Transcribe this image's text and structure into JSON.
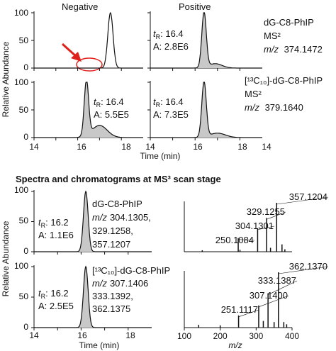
{
  "headers": {
    "negative": "Negative",
    "positive": "Positive"
  },
  "ylabel": "Relative Abundance",
  "ticks": {
    "y0": "0",
    "y50": "50",
    "y100": "100",
    "x14": "14",
    "x16": "16",
    "x18": "18"
  },
  "xlabel_time": "Time (min)",
  "xlabel_mz": "m/z",
  "section_title": "Spectra and chromatograms at MS³ scan stage",
  "colors": {
    "peak_fill": "#c8c8c8",
    "line": "#111111",
    "arrow": "#e0201b"
  },
  "top_labels": {
    "row1": {
      "compound": "dG-C8-PhIP",
      "ms": "MS²",
      "mz_prefix": "m/z",
      "mz": "374.1472"
    },
    "row2": {
      "compound": "[¹³C₁₀]-dG-C8-PhIP",
      "ms": "MS²",
      "mz_prefix": "m/z",
      "mz": "379.1640"
    }
  },
  "annotations": {
    "r1_pos": {
      "tr": "16.4",
      "a": "2.8E6"
    },
    "r2_neg": {
      "tr": "16.4",
      "a": "5.5E5"
    },
    "r2_pos": {
      "tr": "16.4",
      "a": "7.3E5"
    },
    "b1": {
      "tr": "16.2",
      "a": "1.1E6",
      "compound": "dG-C8-PhIP",
      "mz_prefix": "m/z",
      "mz1": "304.1305,",
      "mz2": "329.1258,",
      "mz3": "357.1207"
    },
    "b2": {
      "tr": "16.2",
      "a": "2.5E5",
      "compound": "[¹³C₁₀]-dG-C8-PhIP",
      "mz_prefix": "m/z",
      "mz1": "307.1406",
      "mz2": "333.1392,",
      "mz3": "362.1375"
    }
  },
  "chart_data": [
    {
      "type": "line",
      "panel": "negative dG-C8-PhIP MS²",
      "xlim": [
        14,
        19
      ],
      "ylim": [
        0,
        100
      ],
      "peaks": [
        {
          "rt": 17.5,
          "height": 100,
          "width": 0.12
        }
      ]
    },
    {
      "type": "area",
      "panel": "positive dG-C8-PhIP MS²",
      "xlim": [
        14,
        19
      ],
      "ylim": [
        0,
        100
      ],
      "peaks": [
        {
          "rt": 16.4,
          "height": 100,
          "width": 0.1
        },
        {
          "rt": 16.9,
          "height": 8,
          "width": 0.3
        }
      ]
    },
    {
      "type": "area",
      "panel": "negative [¹³C₁₀]-dG-C8-PhIP MS²",
      "xlim": [
        14,
        19
      ],
      "ylim": [
        0,
        100
      ],
      "peaks": [
        {
          "rt": 16.4,
          "height": 100,
          "width": 0.1
        },
        {
          "rt": 17.0,
          "height": 22,
          "width": 0.35
        }
      ]
    },
    {
      "type": "area",
      "panel": "positive [¹³C₁₀]-dG-C8-PhIP MS²",
      "xlim": [
        14,
        19
      ],
      "ylim": [
        0,
        100
      ],
      "peaks": [
        {
          "rt": 16.4,
          "height": 100,
          "width": 0.1
        },
        {
          "rt": 17.0,
          "height": 8,
          "width": 0.35
        }
      ]
    },
    {
      "type": "area",
      "panel": "dG-C8-PhIP MS³ chromatogram",
      "xlim": [
        14,
        19
      ],
      "ylim": [
        0,
        100
      ],
      "peaks": [
        {
          "rt": 16.2,
          "height": 100,
          "width": 0.1
        }
      ]
    },
    {
      "type": "area",
      "panel": "[¹³C₁₀]-dG-C8-PhIP MS³ chromatogram",
      "xlim": [
        14,
        19
      ],
      "ylim": [
        0,
        100
      ],
      "peaks": [
        {
          "rt": 16.2,
          "height": 100,
          "width": 0.1
        }
      ]
    },
    {
      "type": "bar",
      "panel": "dG-C8-PhIP MS³ spectrum",
      "xlabel": "m/z",
      "xlim": [
        100,
        400
      ],
      "ylim": [
        0,
        100
      ],
      "peaks": [
        {
          "mz": 150,
          "intensity": 3
        },
        {
          "mz": 250.1084,
          "intensity": 28,
          "label": "250.1084"
        },
        {
          "mz": 255,
          "intensity": 4
        },
        {
          "mz": 304.1301,
          "intensity": 48,
          "label": "304.1301"
        },
        {
          "mz": 329.1255,
          "intensity": 69,
          "label": "329.1255"
        },
        {
          "mz": 340,
          "intensity": 8
        },
        {
          "mz": 357.1204,
          "intensity": 100,
          "label": "357.1204"
        },
        {
          "mz": 372,
          "intensity": 15
        },
        {
          "mz": 380,
          "intensity": 5
        }
      ]
    },
    {
      "type": "bar",
      "panel": "[¹³C₁₀]-dG-C8-PhIP MS³ spectrum",
      "xlabel": "m/z",
      "xlim": [
        100,
        400
      ],
      "ylim": [
        0,
        100
      ],
      "peaks": [
        {
          "mz": 140,
          "intensity": 5
        },
        {
          "mz": 200,
          "intensity": 4
        },
        {
          "mz": 251.1117,
          "intensity": 22,
          "label": "251.1117"
        },
        {
          "mz": 307.14,
          "intensity": 40,
          "label": "307.1400"
        },
        {
          "mz": 320,
          "intensity": 12
        },
        {
          "mz": 333.1387,
          "intensity": 62,
          "label": "333.1387"
        },
        {
          "mz": 350,
          "intensity": 10
        },
        {
          "mz": 362.137,
          "intensity": 100,
          "label": "362.1370"
        },
        {
          "mz": 377,
          "intensity": 10
        },
        {
          "mz": 385,
          "intensity": 6
        }
      ]
    }
  ]
}
